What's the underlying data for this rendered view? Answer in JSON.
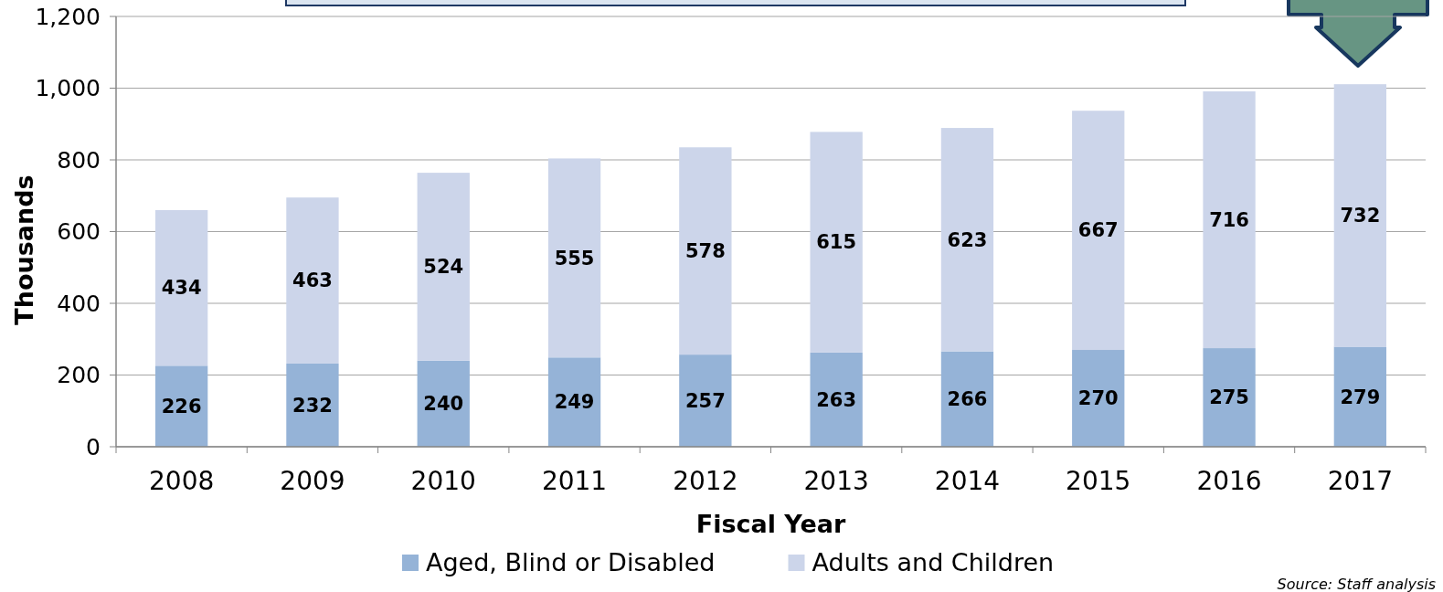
{
  "chart_data": {
    "type": "bar",
    "stacked": true,
    "xlabel": "Fiscal Year",
    "ylabel": "Thousands",
    "categories": [
      "2008",
      "2009",
      "2010",
      "2011",
      "2012",
      "2013",
      "2014",
      "2015",
      "2016",
      "2017"
    ],
    "series": [
      {
        "name": "Aged, Blind or Disabled",
        "color": "#95b3d7",
        "values": [
          226,
          232,
          240,
          249,
          257,
          263,
          266,
          270,
          275,
          279
        ]
      },
      {
        "name": "Adults and Children",
        "color": "#ccd5ea",
        "values": [
          434,
          463,
          524,
          555,
          578,
          615,
          623,
          667,
          716,
          732
        ]
      }
    ],
    "ylim": [
      0,
      1200
    ],
    "yticks": [
      0,
      {
        "value": 200,
        "label": "200"
      },
      {
        "value": 400,
        "label": "400"
      },
      {
        "value": 600,
        "label": "600"
      },
      {
        "value": 800,
        "label": "800"
      },
      {
        "value": 1000,
        "label": "1,000"
      },
      {
        "value": 1200,
        "label": "1,200"
      }
    ],
    "grid": "y",
    "legend": "bottom",
    "data_labels": true,
    "annotations": [
      "Source: Staff analysis"
    ]
  }
}
